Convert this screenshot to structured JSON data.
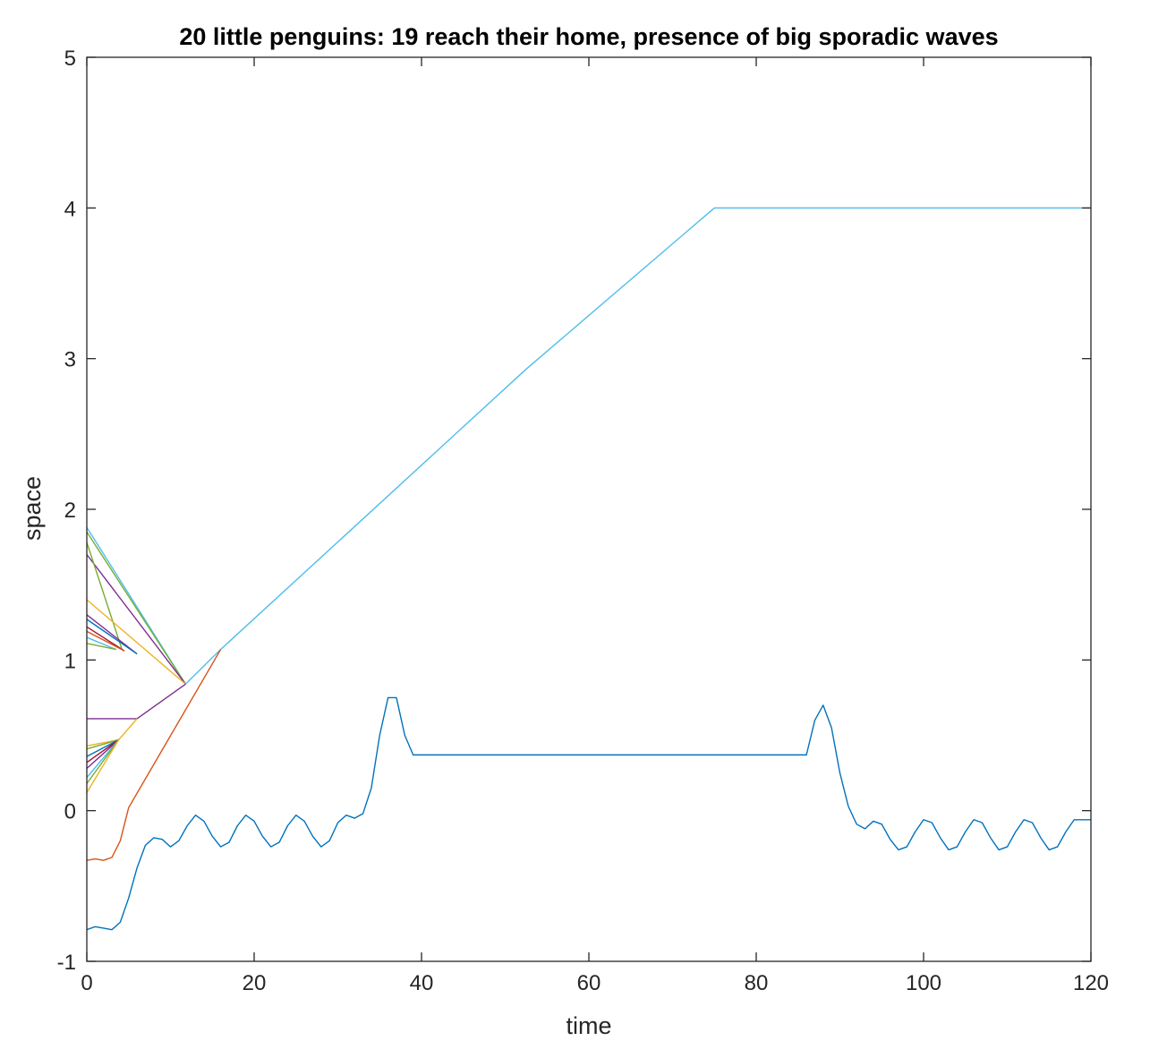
{
  "chart_data": {
    "type": "line",
    "title": "20 little penguins: 19 reach their home, presence of big sporadic waves",
    "xlabel": "time",
    "ylabel": "space",
    "xlim": [
      0,
      120
    ],
    "ylim": [
      -1,
      5
    ],
    "xticks": [
      0,
      20,
      40,
      60,
      80,
      100,
      120
    ],
    "yticks": [
      -1,
      0,
      1,
      2,
      3,
      4,
      5
    ],
    "grid": false,
    "legend": "none",
    "series": [
      {
        "color": "#4DBEEE",
        "x": [
          0,
          11.8,
          16,
          52.5,
          75,
          120
        ],
        "y": [
          1.88,
          0.84,
          1.07,
          2.93,
          4.0,
          4.0
        ]
      },
      {
        "color": "#77AC30",
        "x": [
          0,
          11.8
        ],
        "y": [
          1.85,
          0.84
        ]
      },
      {
        "color": "#7E2F8E",
        "x": [
          0,
          11.8
        ],
        "y": [
          1.7,
          0.84
        ]
      },
      {
        "color": "#77AC30",
        "x": [
          0,
          4.2
        ],
        "y": [
          1.78,
          1.07
        ]
      },
      {
        "color": "#EDB120",
        "x": [
          0,
          11.8
        ],
        "y": [
          1.4,
          0.84
        ]
      },
      {
        "color": "#7E2F8E",
        "x": [
          0,
          6.0
        ],
        "y": [
          1.3,
          1.04
        ]
      },
      {
        "color": "#0072BD",
        "x": [
          0,
          6.0
        ],
        "y": [
          1.27,
          1.04
        ]
      },
      {
        "color": "#A2142F",
        "x": [
          0,
          4.5
        ],
        "y": [
          1.22,
          1.06
        ]
      },
      {
        "color": "#D95319",
        "x": [
          0,
          4.5
        ],
        "y": [
          1.19,
          1.06
        ]
      },
      {
        "color": "#4DBEEE",
        "x": [
          0,
          3.5
        ],
        "y": [
          1.15,
          1.07
        ]
      },
      {
        "color": "#77AC30",
        "x": [
          0,
          3.5
        ],
        "y": [
          1.11,
          1.07
        ]
      },
      {
        "color": "#7E2F8E",
        "x": [
          0,
          6.0,
          11.8
        ],
        "y": [
          0.61,
          0.61,
          0.84
        ]
      },
      {
        "color": "#EDB120",
        "x": [
          0,
          3.8,
          6.0
        ],
        "y": [
          0.43,
          0.47,
          0.61
        ]
      },
      {
        "color": "#77AC30",
        "x": [
          0,
          3.8
        ],
        "y": [
          0.41,
          0.47
        ]
      },
      {
        "color": "#0072BD",
        "x": [
          0,
          3.8
        ],
        "y": [
          0.36,
          0.47
        ]
      },
      {
        "color": "#A2142F",
        "x": [
          0,
          3.8
        ],
        "y": [
          0.32,
          0.47
        ]
      },
      {
        "color": "#7E2F8E",
        "x": [
          0,
          3.8
        ],
        "y": [
          0.28,
          0.47
        ]
      },
      {
        "color": "#4DBEEE",
        "x": [
          0,
          3.8
        ],
        "y": [
          0.22,
          0.47
        ]
      },
      {
        "color": "#77AC30",
        "x": [
          0,
          3.8
        ],
        "y": [
          0.18,
          0.47
        ]
      },
      {
        "color": "#EDB120",
        "x": [
          0,
          3.8
        ],
        "y": [
          0.12,
          0.47
        ]
      },
      {
        "color": "#D95319",
        "x": [
          0,
          1,
          2,
          3,
          4,
          5,
          16
        ],
        "y": [
          -0.33,
          -0.32,
          -0.33,
          -0.31,
          -0.2,
          0.02,
          1.07
        ]
      },
      {
        "color": "#0072BD",
        "x": [
          0,
          1,
          2,
          3,
          4,
          5,
          6,
          7,
          8,
          9,
          10,
          11,
          12,
          13,
          14,
          15,
          16,
          17,
          18,
          19,
          20,
          21,
          22,
          23,
          24,
          25,
          26,
          27,
          28,
          29,
          30,
          31,
          32,
          33,
          34,
          35,
          36,
          37,
          38,
          39,
          40,
          41,
          50,
          60,
          70,
          80,
          86,
          87,
          88,
          89,
          90,
          91,
          92,
          93,
          94,
          95,
          96,
          97,
          98,
          99,
          100,
          101,
          102,
          103,
          104,
          105,
          106,
          107,
          108,
          109,
          110,
          111,
          112,
          113,
          114,
          115,
          116,
          117,
          118,
          119,
          120
        ],
        "y": [
          -0.79,
          -0.77,
          -0.78,
          -0.79,
          -0.74,
          -0.58,
          -0.38,
          -0.23,
          -0.18,
          -0.19,
          -0.24,
          -0.2,
          -0.1,
          -0.03,
          -0.07,
          -0.17,
          -0.24,
          -0.21,
          -0.1,
          -0.03,
          -0.07,
          -0.17,
          -0.24,
          -0.21,
          -0.1,
          -0.03,
          -0.07,
          -0.17,
          -0.24,
          -0.2,
          -0.08,
          -0.03,
          -0.05,
          -0.02,
          0.15,
          0.5,
          0.75,
          0.75,
          0.5,
          0.37,
          0.37,
          0.37,
          0.37,
          0.37,
          0.37,
          0.37,
          0.37,
          0.6,
          0.7,
          0.55,
          0.25,
          0.03,
          -0.09,
          -0.12,
          -0.07,
          -0.09,
          -0.19,
          -0.26,
          -0.24,
          -0.14,
          -0.06,
          -0.08,
          -0.18,
          -0.26,
          -0.24,
          -0.14,
          -0.06,
          -0.08,
          -0.18,
          -0.26,
          -0.24,
          -0.14,
          -0.06,
          -0.08,
          -0.18,
          -0.26,
          -0.24,
          -0.14,
          -0.06,
          -0.06,
          -0.06
        ]
      }
    ]
  }
}
